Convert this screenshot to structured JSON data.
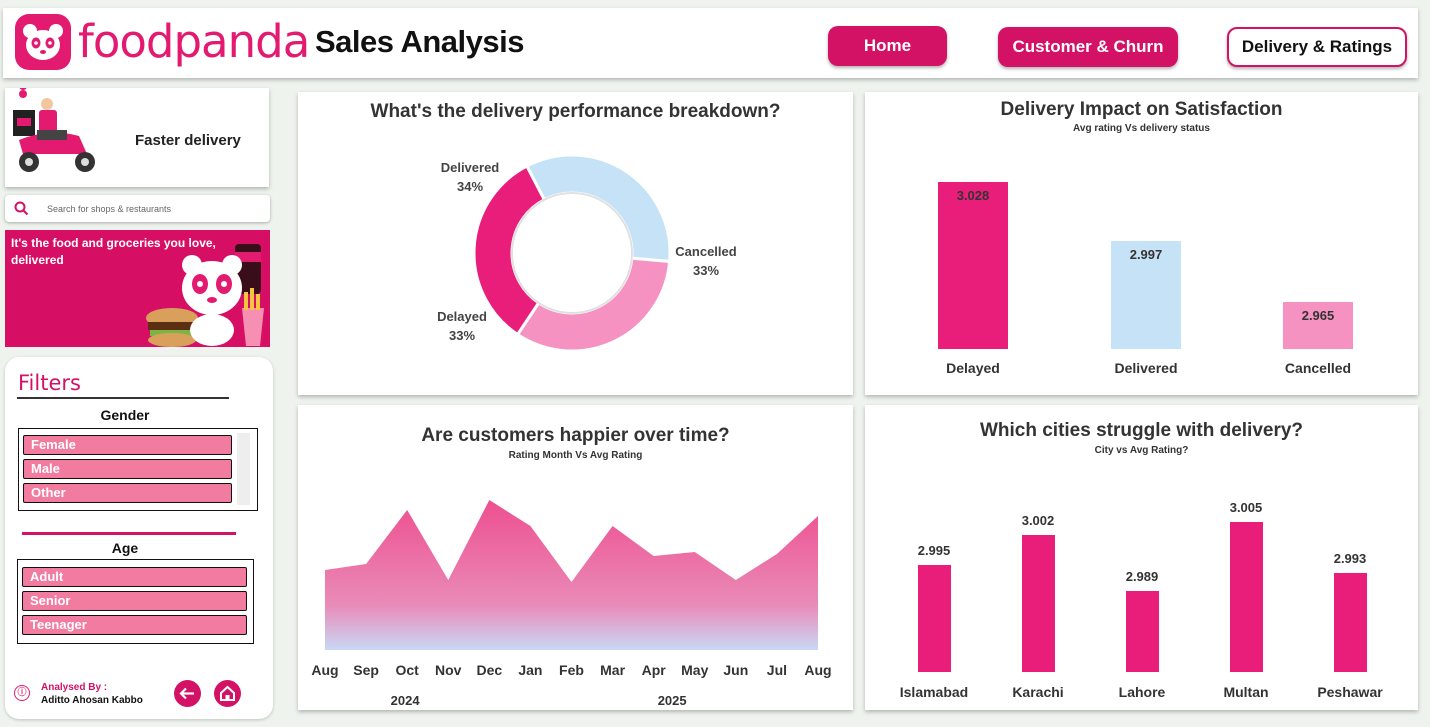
{
  "header": {
    "brand": "foodpanda",
    "title": "Sales Analysis",
    "nav": [
      {
        "label": "Home"
      },
      {
        "label": "Customer & Churn"
      },
      {
        "label": "Delivery & Ratings"
      }
    ]
  },
  "sidebar": {
    "promo_text": "Faster delivery",
    "search_placeholder": "Search for shops & restaurants",
    "banner_text": "It's the food and groceries you love, delivered",
    "filters_title": "Filters",
    "gender_title": "Gender",
    "gender_options": [
      "Female",
      "Male",
      "Other"
    ],
    "age_title": "Age",
    "age_options": [
      "Adult",
      "Senior",
      "Teenager"
    ],
    "analysed_by_label": "Analysed By :",
    "analyst": "Aditto Ahosan Kabbo"
  },
  "colors": {
    "brand": "#e21b70",
    "delayed": "#e91e7a",
    "delivered": "#c5e2f7",
    "cancelled": "#f592c1",
    "slicer": "#f27ba0"
  },
  "chart_data": [
    {
      "type": "pie",
      "title": "What's the delivery performance breakdown?",
      "slices": [
        {
          "label": "Delivered",
          "value": 34,
          "display": "34%"
        },
        {
          "label": "Cancelled",
          "value": 33,
          "display": "33%"
        },
        {
          "label": "Delayed",
          "value": 33,
          "display": "33%"
        }
      ]
    },
    {
      "type": "bar",
      "title": "Delivery Impact on Satisfaction",
      "subtitle": "Avg rating Vs delivery status",
      "categories": [
        "Delayed",
        "Delivered",
        "Cancelled"
      ],
      "values": [
        3.028,
        2.997,
        2.965
      ],
      "labels": [
        "3.028",
        "2.997",
        "2.965"
      ],
      "ylim": [
        2.94,
        3.035
      ]
    },
    {
      "type": "area",
      "title": "Are customers happier over time?",
      "subtitle": "Rating Month Vs Avg Rating",
      "x": [
        "Aug",
        "Sep",
        "Oct",
        "Nov",
        "Dec",
        "Jan",
        "Feb",
        "Mar",
        "Apr",
        "May",
        "Jun",
        "Jul",
        "Aug"
      ],
      "year_labels": [
        "2024",
        "2025"
      ],
      "values": [
        2.985,
        2.988,
        3.015,
        2.98,
        3.02,
        3.007,
        2.979,
        3.007,
        2.992,
        2.994,
        2.98,
        2.993,
        3.012
      ],
      "ylim": [
        2.945,
        3.025
      ]
    },
    {
      "type": "bar",
      "title": "Which cities struggle with delivery?",
      "subtitle": "City vs Avg Rating?",
      "categories": [
        "Islamabad",
        "Karachi",
        "Lahore",
        "Multan",
        "Peshawar"
      ],
      "values": [
        2.995,
        3.002,
        2.989,
        3.005,
        2.993
      ],
      "labels": [
        "2.995",
        "3.002",
        "2.989",
        "3.005",
        "2.993"
      ],
      "ylim": [
        2.97,
        3.008
      ]
    }
  ]
}
